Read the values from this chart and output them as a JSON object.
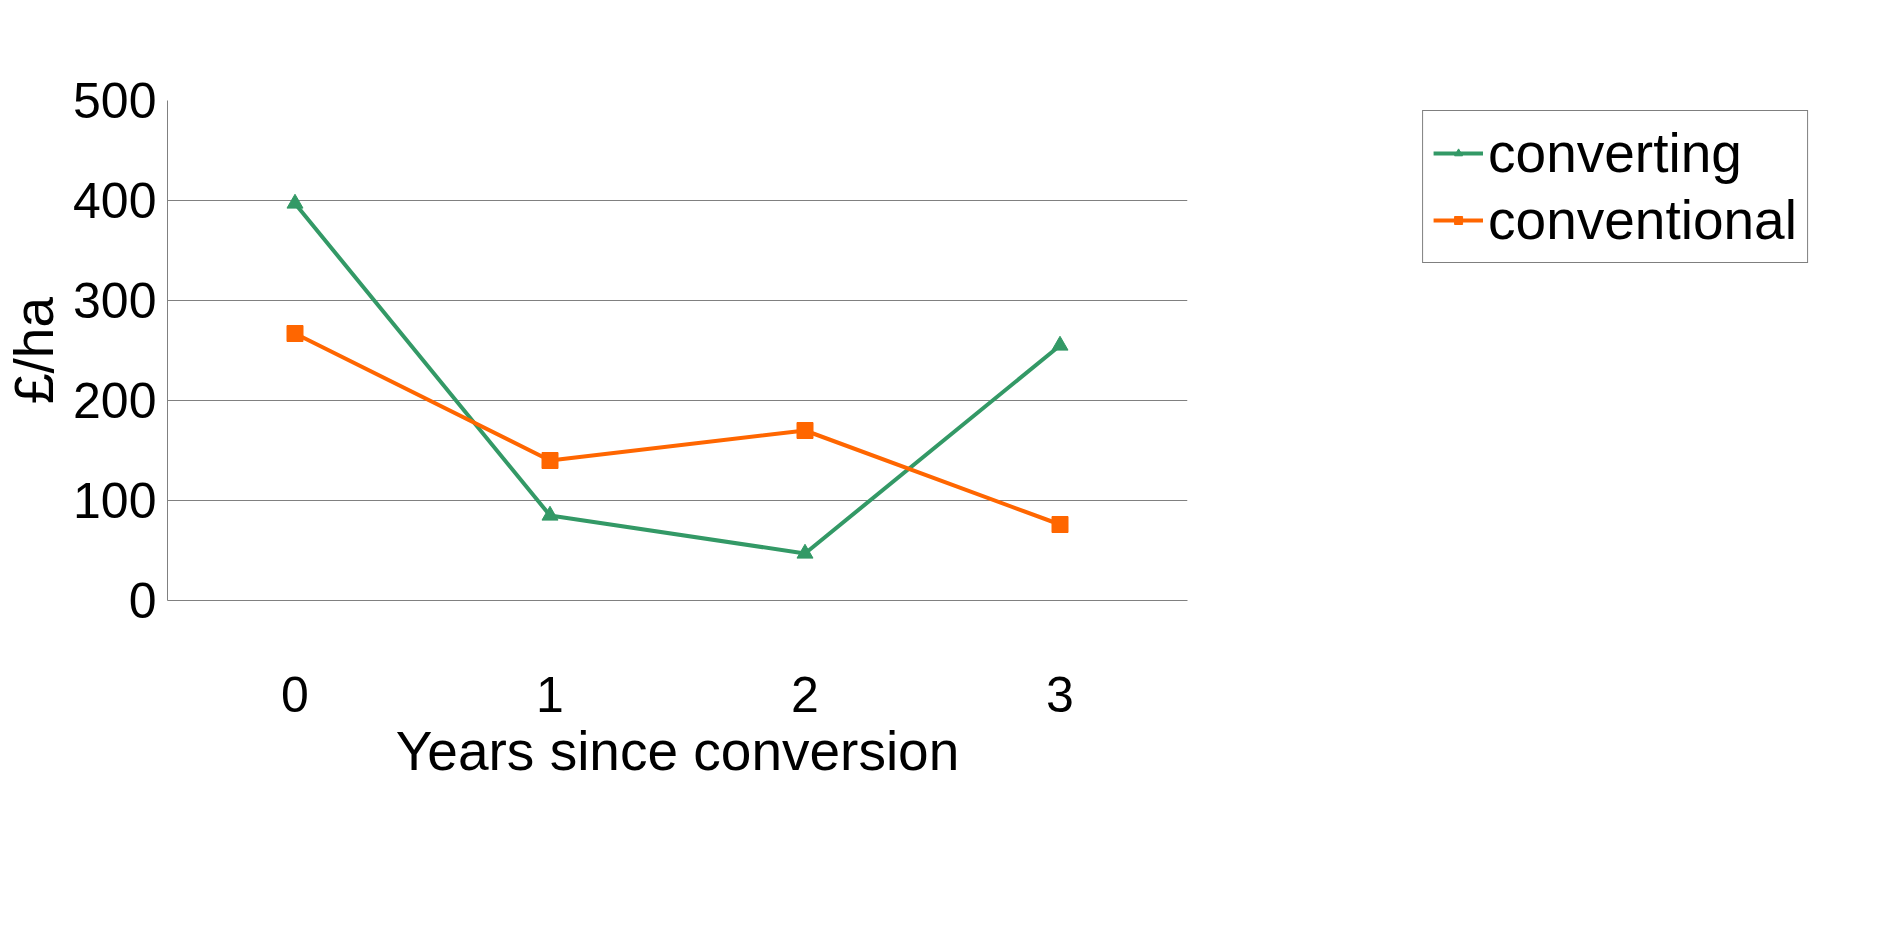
{
  "chart_data": {
    "type": "line",
    "xlabel": "Years since conversion",
    "ylabel": "£/ha",
    "categories": [
      "0",
      "1",
      "2",
      "3"
    ],
    "series": [
      {
        "name": "converting",
        "color": "#339966",
        "values": [
          397,
          85,
          47,
          255
        ],
        "marker": "triangle"
      },
      {
        "name": "conventional",
        "color": "#ff6600",
        "values": [
          267,
          140,
          170,
          76
        ],
        "marker": "square"
      }
    ],
    "ylim": [
      0,
      500
    ],
    "yticks": [
      0,
      100,
      200,
      300,
      400,
      500
    ],
    "grid": "y",
    "legend": "top right",
    "line_style": "solid"
  }
}
